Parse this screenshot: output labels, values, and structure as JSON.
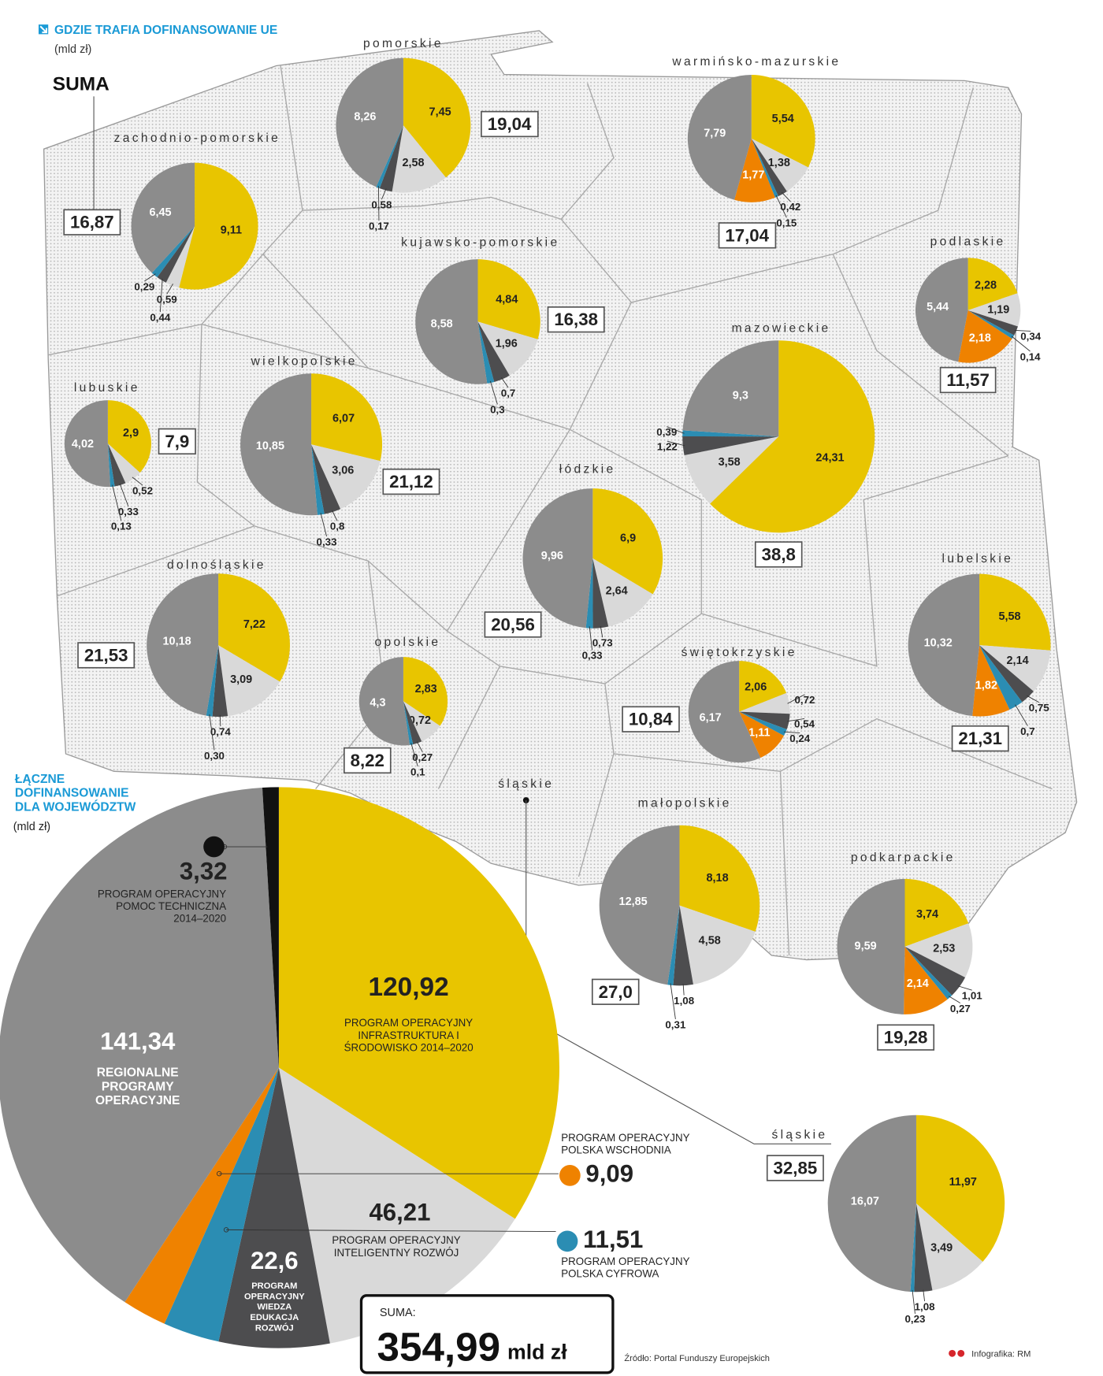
{
  "header": {
    "title": "GDZIE TRAFIA DOFINANSOWANIE UE",
    "unit": "(mld zł)",
    "total_caption": "SUMA"
  },
  "chart_data": [
    {
      "type": "pie",
      "title": "zachodnio-pomorskie",
      "total": "16,87",
      "values": [
        9.11,
        0.59,
        0.44,
        0.29,
        6.45
      ],
      "value_labels": [
        "9,11",
        "0,59",
        "0,44",
        "0,29",
        "6,45"
      ],
      "colors": [
        "#e8c500",
        "#d9d9d9",
        "#4d4d4f",
        "#2b8db3",
        "#8c8c8c"
      ]
    },
    {
      "type": "pie",
      "title": "pomorskie",
      "total": "19,04",
      "values": [
        7.45,
        2.58,
        0.58,
        0.17,
        8.26
      ],
      "value_labels": [
        "7,45",
        "2,58",
        "0,58",
        "0,17",
        "8,26"
      ],
      "colors": [
        "#e8c500",
        "#d9d9d9",
        "#4d4d4f",
        "#2b8db3",
        "#8c8c8c"
      ]
    },
    {
      "type": "pie",
      "title": "warmińsko-mazurskie",
      "total": "17,04",
      "values": [
        5.54,
        1.38,
        0.42,
        0.15,
        1.77,
        7.79
      ],
      "value_labels": [
        "5,54",
        "1,38",
        "0,42",
        "0,15",
        "1,77",
        "7,79"
      ],
      "colors": [
        "#e8c500",
        "#d9d9d9",
        "#4d4d4f",
        "#2b8db3",
        "#ef8200",
        "#8c8c8c"
      ]
    },
    {
      "type": "pie",
      "title": "kujawsko-pomorskie",
      "total": "16,38",
      "values": [
        4.84,
        1.96,
        0.7,
        0.3,
        8.58
      ],
      "value_labels": [
        "4,84",
        "1,96",
        "0,7",
        "0,3",
        "8,58"
      ],
      "colors": [
        "#e8c500",
        "#d9d9d9",
        "#4d4d4f",
        "#2b8db3",
        "#8c8c8c"
      ]
    },
    {
      "type": "pie",
      "title": "podlaskie",
      "total": "11,57",
      "values": [
        2.28,
        1.19,
        0.34,
        0.14,
        2.18,
        5.44
      ],
      "value_labels": [
        "2,28",
        "1,19",
        "0,34",
        "0,14",
        "2,18",
        "5,44"
      ],
      "colors": [
        "#e8c500",
        "#d9d9d9",
        "#4d4d4f",
        "#2b8db3",
        "#ef8200",
        "#8c8c8c"
      ]
    },
    {
      "type": "pie",
      "title": "lubuskie",
      "total": "7,9",
      "values": [
        2.9,
        0.52,
        0.33,
        0.13,
        4.02
      ],
      "value_labels": [
        "2,9",
        "0,52",
        "0,33",
        "0,13",
        "4,02"
      ],
      "colors": [
        "#e8c500",
        "#d9d9d9",
        "#4d4d4f",
        "#2b8db3",
        "#8c8c8c"
      ]
    },
    {
      "type": "pie",
      "title": "wielkopolskie",
      "total": "21,12",
      "values": [
        6.07,
        3.06,
        0.8,
        0.33,
        10.85
      ],
      "value_labels": [
        "6,07",
        "3,06",
        "0,8",
        "0,33",
        "10,85"
      ],
      "colors": [
        "#e8c500",
        "#d9d9d9",
        "#4d4d4f",
        "#2b8db3",
        "#8c8c8c"
      ]
    },
    {
      "type": "pie",
      "title": "mazowieckie",
      "total": "38,8",
      "values": [
        24.31,
        3.58,
        1.22,
        0.39,
        9.3
      ],
      "value_labels": [
        "24,31",
        "3,58",
        "1,22",
        "0,39",
        "9,3"
      ],
      "colors": [
        "#e8c500",
        "#d9d9d9",
        "#4d4d4f",
        "#2b8db3",
        "#8c8c8c"
      ]
    },
    {
      "type": "pie",
      "title": "łódzkie",
      "total": "20,56",
      "values": [
        6.9,
        2.64,
        0.73,
        0.33,
        9.96
      ],
      "value_labels": [
        "6,9",
        "2,64",
        "0,73",
        "0,33",
        "9,96"
      ],
      "colors": [
        "#e8c500",
        "#d9d9d9",
        "#4d4d4f",
        "#2b8db3",
        "#8c8c8c"
      ]
    },
    {
      "type": "pie",
      "title": "dolnośląskie",
      "total": "21,53",
      "values": [
        7.22,
        3.09,
        0.74,
        0.3,
        10.18
      ],
      "value_labels": [
        "7,22",
        "3,09",
        "0,74",
        "0,30",
        "10,18"
      ],
      "colors": [
        "#e8c500",
        "#d9d9d9",
        "#4d4d4f",
        "#2b8db3",
        "#8c8c8c"
      ]
    },
    {
      "type": "pie",
      "title": "opolskie",
      "total": "8,22",
      "values": [
        2.83,
        0.72,
        0.27,
        0.1,
        4.3
      ],
      "value_labels": [
        "2,83",
        "0,72",
        "0,27",
        "0,1",
        "4,3"
      ],
      "colors": [
        "#e8c500",
        "#d9d9d9",
        "#4d4d4f",
        "#2b8db3",
        "#8c8c8c"
      ]
    },
    {
      "type": "pie",
      "title": "świętokrzyskie",
      "total": "10,84",
      "values": [
        2.06,
        0.72,
        0.54,
        0.24,
        1.11,
        6.17
      ],
      "value_labels": [
        "2,06",
        "0,72",
        "0,54",
        "0,24",
        "1,11",
        "6,17"
      ],
      "colors": [
        "#e8c500",
        "#d9d9d9",
        "#4d4d4f",
        "#2b8db3",
        "#ef8200",
        "#8c8c8c"
      ]
    },
    {
      "type": "pie",
      "title": "lubelskie",
      "total": "21,31",
      "values": [
        5.58,
        2.14,
        0.75,
        0.7,
        1.82,
        10.32
      ],
      "value_labels": [
        "5,58",
        "2,14",
        "0,75",
        "0,7",
        "1,82",
        "10,32"
      ],
      "colors": [
        "#e8c500",
        "#d9d9d9",
        "#4d4d4f",
        "#2b8db3",
        "#ef8200",
        "#8c8c8c"
      ]
    },
    {
      "type": "pie",
      "title": "małopolskie",
      "total": "27,0",
      "values": [
        8.18,
        4.58,
        1.08,
        0.31,
        12.85
      ],
      "value_labels": [
        "8,18",
        "4,58",
        "1,08",
        "0,31",
        "12,85"
      ],
      "colors": [
        "#e8c500",
        "#d9d9d9",
        "#4d4d4f",
        "#2b8db3",
        "#8c8c8c"
      ]
    },
    {
      "type": "pie",
      "title": "podkarpackie",
      "total": "19,28",
      "values": [
        3.74,
        2.53,
        1.01,
        0.27,
        2.14,
        9.59
      ],
      "value_labels": [
        "3,74",
        "2,53",
        "1,01",
        "0,27",
        "2,14",
        "9,59"
      ],
      "colors": [
        "#e8c500",
        "#d9d9d9",
        "#4d4d4f",
        "#2b8db3",
        "#ef8200",
        "#8c8c8c"
      ]
    },
    {
      "type": "pie",
      "title": "śląskie",
      "map_label": "śląskie",
      "total": "32,85",
      "values": [
        11.97,
        3.49,
        1.08,
        0.23,
        16.07
      ],
      "value_labels": [
        "11,97",
        "3,49",
        "1,08",
        "0,23",
        "16,07"
      ],
      "colors": [
        "#e8c500",
        "#d9d9d9",
        "#4d4d4f",
        "#2b8db3",
        "#8c8c8c"
      ]
    },
    {
      "type": "pie",
      "title": "ŁĄCZNE DOFINANSOWANIE DLA WOJEWÓDZTW",
      "unit": "(mld zł)",
      "names": [
        "PROGRAM OPERACYJNY INFRASTRUKTURA I ŚRODOWISKO 2014–2020",
        "PROGRAM OPERACYJNY INTELIGENTNY ROZWÓJ",
        "PROGRAM OPERACYJNY WIEDZA EDUKACJA ROZWÓJ",
        "PROGRAM OPERACYJNY POLSKA CYFROWA",
        "PROGRAM OPERACYJNY POLSKA WSCHODNIA",
        "REGIONALNE PROGRAMY OPERACYJNE",
        "PROGRAM OPERACYJNY POMOC TECHNICZNA 2014–2020"
      ],
      "values": [
        120.92,
        46.21,
        22.6,
        11.51,
        9.09,
        141.34,
        3.32
      ],
      "value_labels": [
        "120,92",
        "46,21",
        "22,6",
        "11,51",
        "9,09",
        "141,34",
        "3,32"
      ],
      "colors": [
        "#e8c500",
        "#d9d9d9",
        "#4d4d4f",
        "#2b8db3",
        "#ef8200",
        "#8c8c8c",
        "#111111"
      ],
      "total_caption": "SUMA:",
      "total": "354,99",
      "total_unit": "mld zł"
    }
  ],
  "footer": {
    "source": "Źródło: Portal Funduszy Europejskich",
    "credit": "Infografika: RM"
  }
}
